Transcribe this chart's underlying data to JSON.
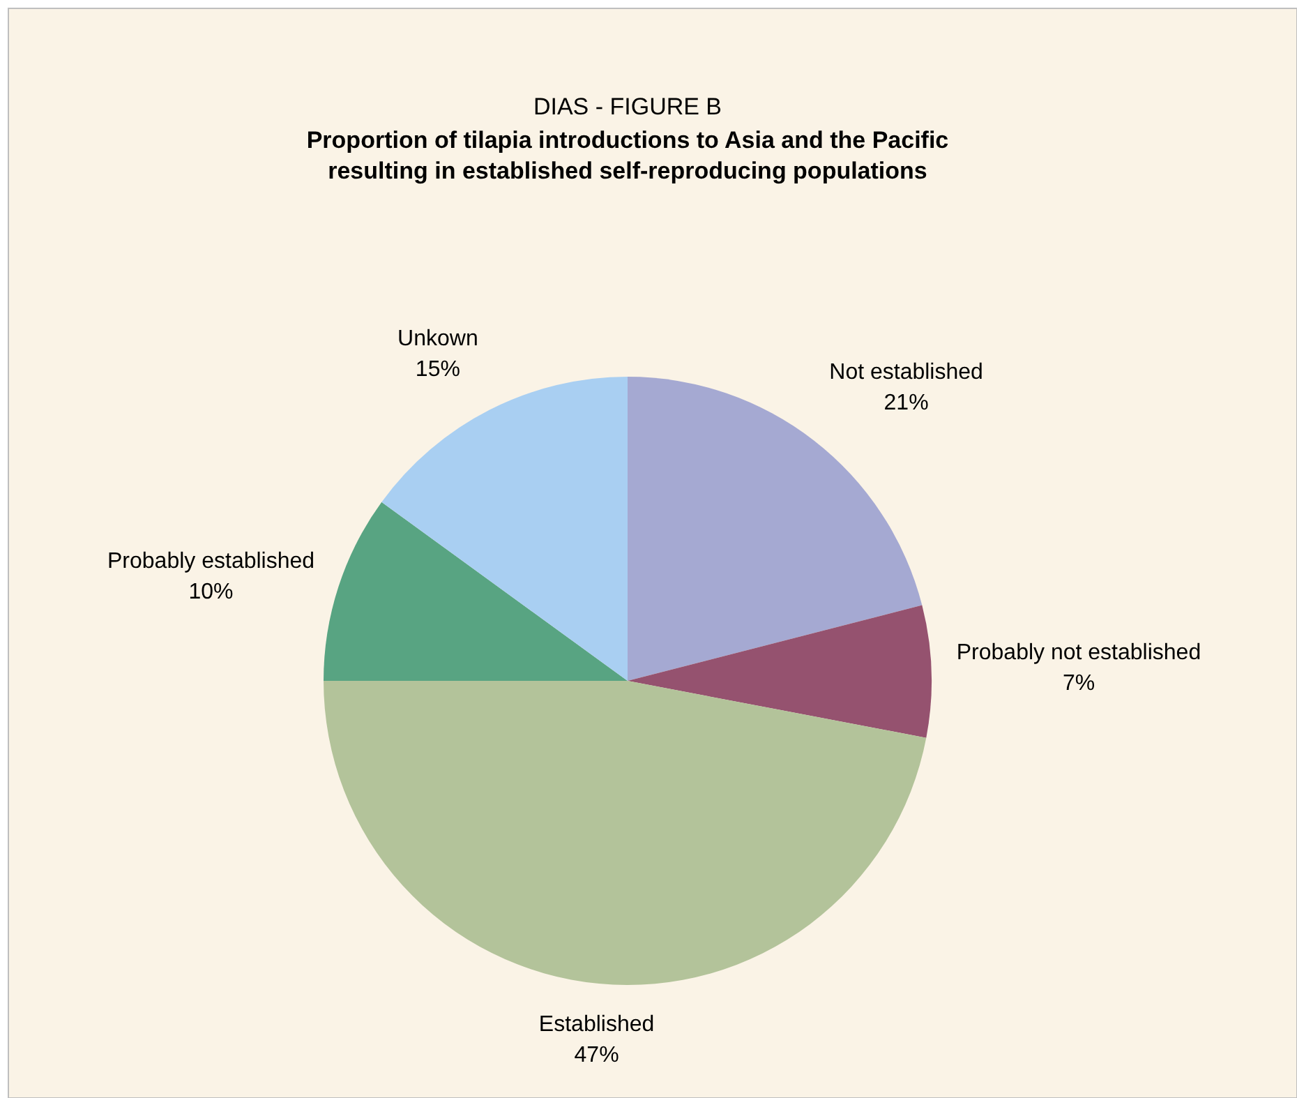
{
  "chart_data": {
    "type": "pie",
    "title": "DIAS - FIGURE B",
    "subtitle": "Proportion of tilapia introductions to Asia and the Pacific resulting in established self-reproducing populations",
    "categories": [
      "Not established",
      "Probably not established",
      "Established",
      "Probably established",
      "Unkown"
    ],
    "values": [
      21,
      7,
      47,
      10,
      15
    ],
    "value_labels": [
      "21%",
      "7%",
      "47%",
      "10%",
      "15%"
    ],
    "colors": [
      "#a5a9d2",
      "#95526f",
      "#b3c39a",
      "#58a482",
      "#a9cff2"
    ]
  }
}
